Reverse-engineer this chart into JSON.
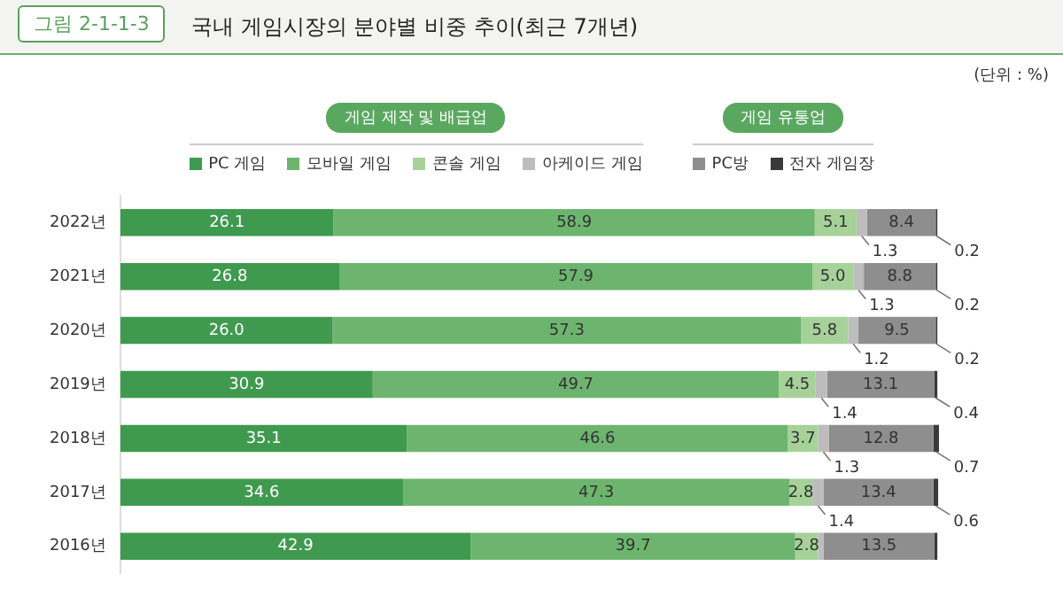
{
  "chart_data": {
    "type": "bar",
    "orientation": "horizontal",
    "stacked": true,
    "title": "국내 게임시장의 분야별 비중 추이(최근 7개년)",
    "annotations": [
      "그림 2-1-1-3",
      "(단위 : %)",
      "게임 제작 및 배급업",
      "게임 유통업"
    ],
    "categories": [
      "2022년",
      "2021년",
      "2020년",
      "2019년",
      "2018년",
      "2017년",
      "2016년"
    ],
    "series": [
      {
        "name": "PC 게임",
        "color": "#3f9a4f",
        "values": [
          26.1,
          26.8,
          26.0,
          30.9,
          35.1,
          34.6,
          42.9
        ],
        "value_labels": [
          "26.1",
          "26.8",
          "26.0",
          "30.9",
          "35.1",
          "34.6",
          "42.9"
        ]
      },
      {
        "name": "모바일 게임",
        "color": "#6db56f",
        "values": [
          58.9,
          57.9,
          57.3,
          49.7,
          46.6,
          47.3,
          39.7
        ],
        "value_labels": [
          "58.9",
          "57.9",
          "57.3",
          "49.7",
          "46.6",
          "47.3",
          "39.7"
        ]
      },
      {
        "name": "콘솔 게임",
        "color": "#a6d29a",
        "values": [
          5.1,
          5.0,
          5.8,
          4.5,
          3.7,
          2.8,
          2.8
        ],
        "value_labels": [
          "5.1",
          "5.0",
          "5.8",
          "4.5",
          "3.7",
          "2.8",
          "2.8"
        ]
      },
      {
        "name": "아케이드 게임",
        "color": "#bdbdbd",
        "values": [
          1.3,
          1.3,
          1.2,
          1.4,
          1.3,
          1.4,
          0.7
        ],
        "value_labels": [
          "1.3",
          "1.3",
          "1.2",
          "1.4",
          "1.3",
          "1.4",
          null
        ]
      },
      {
        "name": "PC방",
        "color": "#8e8e8e",
        "values": [
          8.4,
          8.8,
          9.5,
          13.1,
          12.8,
          13.4,
          13.5
        ],
        "value_labels": [
          "8.4",
          "8.8",
          "9.5",
          "13.1",
          "12.8",
          "13.4",
          "13.5"
        ]
      },
      {
        "name": "전자 게임장",
        "color": "#3a3a3a",
        "values": [
          0.2,
          0.2,
          0.2,
          0.4,
          0.7,
          0.6,
          0.4
        ],
        "value_labels": [
          "0.2",
          "0.2",
          "0.2",
          "0.4",
          "0.7",
          "0.6",
          null
        ]
      }
    ],
    "data_labels": true,
    "legend": "top",
    "grid": false
  }
}
